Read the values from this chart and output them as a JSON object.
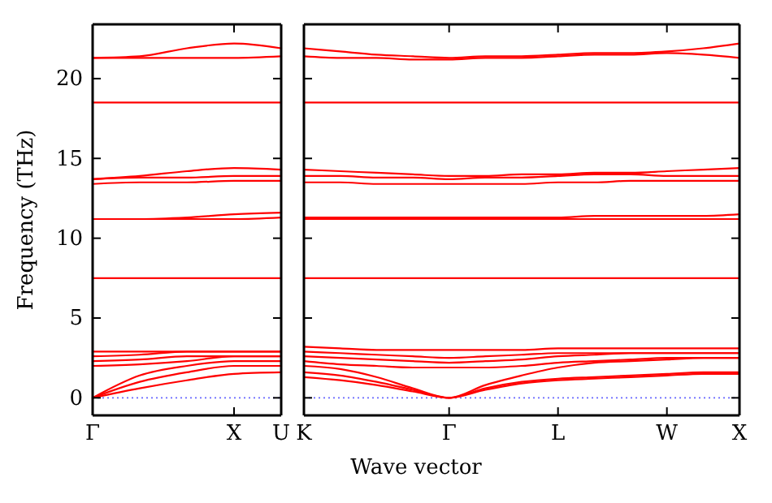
{
  "chart_data": [
    {
      "type": "line",
      "ylabel": "Frequency (THz)",
      "categories": [
        "Γ",
        null,
        null,
        "X",
        "U"
      ],
      "ylim": [
        -1.1,
        23.4
      ],
      "yticks": [
        0,
        5,
        10,
        15,
        20
      ],
      "grid": false,
      "line_style": "solid",
      "ref_lines": [
        {
          "axis": "y",
          "value": 0,
          "color": "#6666ff",
          "line_style": "dotted"
        }
      ],
      "series": [
        {
          "color": "#ff0000",
          "values": [
            0,
            0.6,
            1.1,
            1.5,
            1.6
          ]
        },
        {
          "color": "#ff0000",
          "values": [
            0,
            1.0,
            1.6,
            2.0,
            2.0
          ]
        },
        {
          "color": "#ff0000",
          "values": [
            0,
            1.4,
            2.0,
            2.3,
            2.3
          ]
        },
        {
          "color": "#ff0000",
          "values": [
            2.0,
            2.1,
            2.3,
            2.6,
            2.6
          ]
        },
        {
          "color": "#ff0000",
          "values": [
            2.3,
            2.4,
            2.6,
            2.6,
            2.6
          ]
        },
        {
          "color": "#ff0000",
          "values": [
            2.6,
            2.7,
            2.9,
            2.9,
            2.9
          ]
        },
        {
          "color": "#ff0000",
          "values": [
            2.9,
            2.9,
            2.9,
            2.9,
            2.9
          ]
        },
        {
          "color": "#ff0000",
          "values": [
            7.5,
            7.5,
            7.5,
            7.5,
            7.5
          ]
        },
        {
          "color": "#ff0000",
          "values": [
            11.2,
            11.2,
            11.2,
            11.2,
            11.3
          ]
        },
        {
          "color": "#ff0000",
          "values": [
            11.2,
            11.2,
            11.3,
            11.5,
            11.6
          ]
        },
        {
          "color": "#ff0000",
          "values": [
            13.4,
            13.5,
            13.5,
            13.6,
            13.6
          ]
        },
        {
          "color": "#ff0000",
          "values": [
            13.7,
            13.8,
            13.8,
            13.9,
            13.9
          ]
        },
        {
          "color": "#ff0000",
          "values": [
            13.7,
            13.9,
            14.2,
            14.4,
            14.3
          ]
        },
        {
          "color": "#ff0000",
          "values": [
            18.5,
            18.5,
            18.5,
            18.5,
            18.5
          ]
        },
        {
          "color": "#ff0000",
          "values": [
            21.3,
            21.3,
            21.3,
            21.3,
            21.4
          ]
        },
        {
          "color": "#ff0000",
          "values": [
            21.3,
            21.4,
            21.9,
            22.2,
            21.9
          ]
        }
      ]
    },
    {
      "type": "line",
      "xlabel": "Wave vector",
      "categories": [
        "K",
        null,
        null,
        null,
        "Γ",
        null,
        null,
        "L",
        null,
        null,
        "W",
        null,
        "X"
      ],
      "ylim": [
        -1.1,
        23.4
      ],
      "yticks": [
        0,
        5,
        10,
        15,
        20
      ],
      "tick_labels": "x",
      "grid": false,
      "line_style": "solid",
      "ref_lines": [
        {
          "axis": "y",
          "value": 0,
          "color": "#6666ff",
          "line_style": "dotted"
        }
      ],
      "series": [
        {
          "color": "#ff0000",
          "values": [
            1.3,
            1.1,
            0.8,
            0.4,
            0,
            0.5,
            0.9,
            1.1,
            1.2,
            1.3,
            1.4,
            1.5,
            1.5
          ]
        },
        {
          "color": "#ff0000",
          "values": [
            1.6,
            1.4,
            1.0,
            0.5,
            0,
            0.6,
            1.0,
            1.2,
            1.3,
            1.4,
            1.5,
            1.6,
            1.6
          ]
        },
        {
          "color": "#ff0000",
          "values": [
            2.0,
            1.8,
            1.3,
            0.6,
            0,
            0.8,
            1.4,
            1.9,
            2.2,
            2.3,
            2.4,
            2.5,
            2.5
          ]
        },
        {
          "color": "#ff0000",
          "values": [
            2.3,
            2.1,
            2.0,
            1.9,
            1.9,
            1.9,
            2.0,
            2.2,
            2.3,
            2.4,
            2.5,
            2.5,
            2.5
          ]
        },
        {
          "color": "#ff0000",
          "values": [
            2.6,
            2.5,
            2.4,
            2.3,
            2.2,
            2.3,
            2.4,
            2.6,
            2.7,
            2.8,
            2.8,
            2.8,
            2.8
          ]
        },
        {
          "color": "#ff0000",
          "values": [
            2.9,
            2.8,
            2.7,
            2.6,
            2.5,
            2.6,
            2.7,
            2.8,
            2.8,
            2.8,
            2.8,
            2.8,
            2.8
          ]
        },
        {
          "color": "#ff0000",
          "values": [
            3.2,
            3.1,
            3.0,
            3.0,
            3.0,
            3.0,
            3.0,
            3.1,
            3.1,
            3.1,
            3.1,
            3.1,
            3.1
          ]
        },
        {
          "color": "#ff0000",
          "values": [
            7.5,
            7.5,
            7.5,
            7.5,
            7.5,
            7.5,
            7.5,
            7.5,
            7.5,
            7.5,
            7.5,
            7.5,
            7.5
          ]
        },
        {
          "color": "#ff0000",
          "values": [
            11.2,
            11.2,
            11.2,
            11.2,
            11.2,
            11.2,
            11.2,
            11.2,
            11.2,
            11.2,
            11.2,
            11.2,
            11.2
          ]
        },
        {
          "color": "#ff0000",
          "values": [
            11.3,
            11.3,
            11.3,
            11.3,
            11.3,
            11.3,
            11.3,
            11.3,
            11.4,
            11.4,
            11.4,
            11.4,
            11.5
          ]
        },
        {
          "color": "#ff0000",
          "values": [
            13.5,
            13.5,
            13.4,
            13.4,
            13.4,
            13.4,
            13.4,
            13.5,
            13.5,
            13.6,
            13.6,
            13.6,
            13.6
          ]
        },
        {
          "color": "#ff0000",
          "values": [
            13.9,
            13.9,
            13.8,
            13.8,
            13.7,
            13.8,
            13.8,
            13.9,
            14.0,
            14.0,
            13.9,
            13.9,
            13.9
          ]
        },
        {
          "color": "#ff0000",
          "values": [
            14.3,
            14.2,
            14.1,
            14.0,
            13.9,
            13.9,
            14.0,
            14.0,
            14.1,
            14.1,
            14.2,
            14.3,
            14.4
          ]
        },
        {
          "color": "#ff0000",
          "values": [
            18.5,
            18.5,
            18.5,
            18.5,
            18.5,
            18.5,
            18.5,
            18.5,
            18.5,
            18.5,
            18.5,
            18.5,
            18.5
          ]
        },
        {
          "color": "#ff0000",
          "values": [
            21.4,
            21.3,
            21.3,
            21.2,
            21.2,
            21.3,
            21.3,
            21.4,
            21.5,
            21.5,
            21.6,
            21.5,
            21.3
          ]
        },
        {
          "color": "#ff0000",
          "values": [
            21.9,
            21.7,
            21.5,
            21.4,
            21.3,
            21.4,
            21.4,
            21.5,
            21.6,
            21.6,
            21.7,
            21.9,
            22.2
          ]
        }
      ]
    }
  ]
}
